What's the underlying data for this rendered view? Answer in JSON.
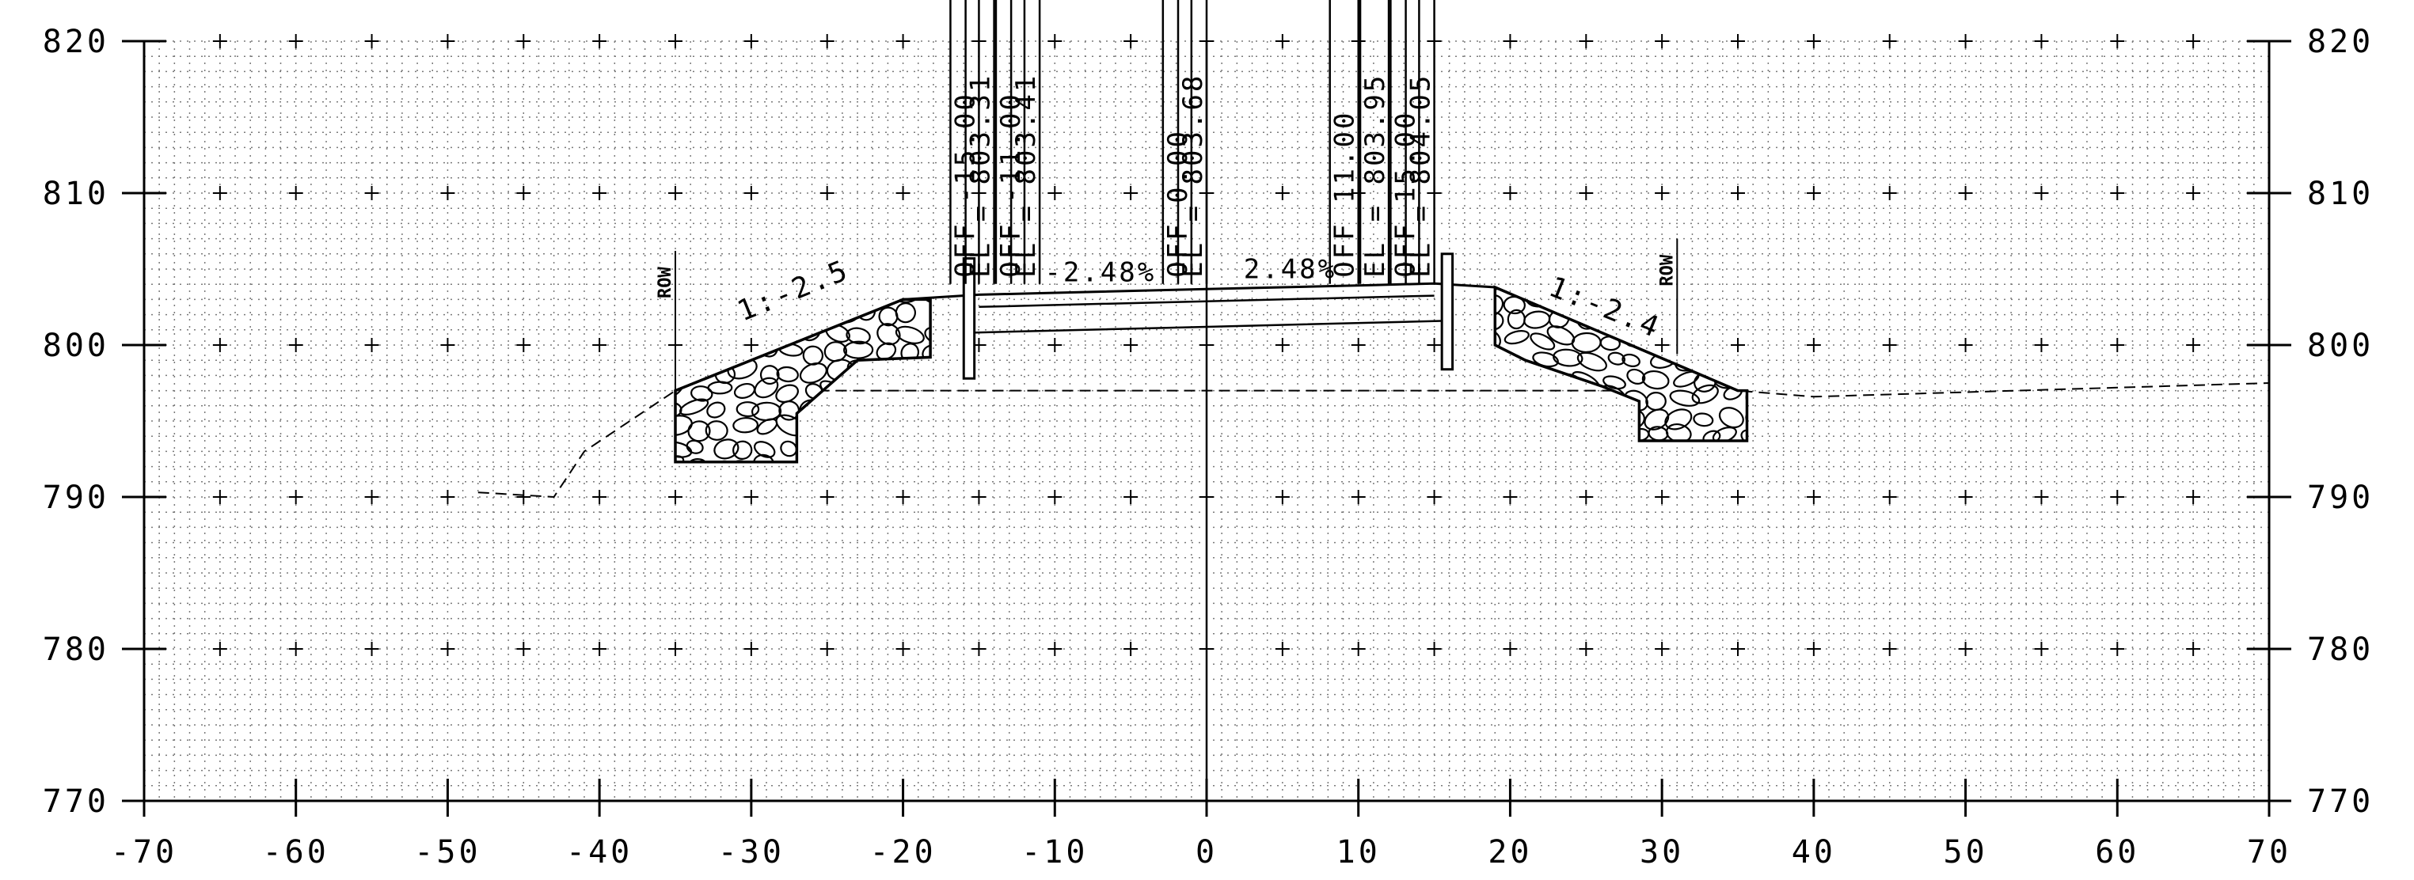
{
  "chart_data": {
    "type": "cross-section",
    "x_range": [
      -70,
      70
    ],
    "y_range": [
      770,
      820
    ],
    "x_ticks": [
      "-70",
      "-60",
      "-50",
      "-40",
      "-30",
      "-20",
      "-10",
      "0",
      "10",
      "20",
      "30",
      "40",
      "50",
      "60",
      "70"
    ],
    "y_ticks": [
      "770",
      "780",
      "790",
      "800",
      "810",
      "820"
    ],
    "grid": true,
    "finished_grade": [
      {
        "x": -35,
        "y": 797
      },
      {
        "x": -20,
        "y": 803
      },
      {
        "x": -15,
        "y": 803.31
      },
      {
        "x": -11,
        "y": 803.41
      },
      {
        "x": 0,
        "y": 803.68
      },
      {
        "x": 11,
        "y": 803.95
      },
      {
        "x": 15,
        "y": 804.05
      },
      {
        "x": 19,
        "y": 803.8
      },
      {
        "x": 35,
        "y": 797
      }
    ],
    "subgrade": [
      {
        "x": -16,
        "y": 800.8
      },
      {
        "x": 0,
        "y": 801.2
      },
      {
        "x": 16,
        "y": 801.6
      }
    ],
    "existing_ground": [
      {
        "x": -48,
        "y": 790.3
      },
      {
        "x": -43,
        "y": 790
      },
      {
        "x": -41,
        "y": 793
      },
      {
        "x": -35,
        "y": 797
      },
      {
        "x": 35,
        "y": 797
      },
      {
        "x": 40,
        "y": 796.6
      },
      {
        "x": 60,
        "y": 797.2
      },
      {
        "x": 70,
        "y": 797.5
      }
    ],
    "riprap_left": [
      {
        "x": -35,
        "y": 797
      },
      {
        "x": -20,
        "y": 803
      },
      {
        "x": -18.2,
        "y": 803
      },
      {
        "x": -18.2,
        "y": 799.2
      },
      {
        "x": -23,
        "y": 799
      },
      {
        "x": -27,
        "y": 795.5
      },
      {
        "x": -27,
        "y": 792.3
      },
      {
        "x": -35,
        "y": 792.3
      }
    ],
    "riprap_right": [
      {
        "x": 19,
        "y": 803.8
      },
      {
        "x": 35,
        "y": 797
      },
      {
        "x": 35.6,
        "y": 797
      },
      {
        "x": 35.6,
        "y": 793.7
      },
      {
        "x": 28.5,
        "y": 793.7
      },
      {
        "x": 28.5,
        "y": 796.3
      },
      {
        "x": 26,
        "y": 797.3
      },
      {
        "x": 21,
        "y": 799
      },
      {
        "x": 19,
        "y": 800
      }
    ],
    "walls": [
      {
        "x1": -16,
        "x2": -15.3,
        "y_top": 805.7,
        "y_bottom": 797.8
      },
      {
        "x1": 15.5,
        "x2": 16.2,
        "y_top": 806.0,
        "y_bottom": 798.4
      }
    ],
    "offset_labels": [
      {
        "x": -15,
        "text": "OFF -15.00"
      },
      {
        "x": -14,
        "text": "EL = 803.31"
      },
      {
        "x": -12,
        "text": "OFF -11.00"
      },
      {
        "x": -11,
        "text": "EL = 803.41"
      },
      {
        "x": -1,
        "text": "OFF 0.00"
      },
      {
        "x": 0,
        "text": "EL = 803.68"
      },
      {
        "x": 10,
        "text": "OFF 11.00"
      },
      {
        "x": 12,
        "text": "EL = 803.95"
      },
      {
        "x": 14,
        "text": "OFF 15.00"
      },
      {
        "x": 15,
        "text": "EL = 804.05"
      }
    ],
    "grade_labels": [
      {
        "x": -7,
        "y": 804.2,
        "text": "-2.48%"
      },
      {
        "x": 5.5,
        "y": 804.4,
        "text": "2.48%"
      }
    ],
    "slope_labels": [
      {
        "x": -27,
        "y": 803,
        "text": "1:-2.5",
        "angle": -22
      },
      {
        "x": 26,
        "y": 801.9,
        "text": "1:-2.4",
        "angle": 22
      }
    ],
    "row_markers": [
      {
        "x": -35,
        "y_top": 806.2,
        "y_bottom": 797,
        "label": "ROW"
      },
      {
        "x": 31,
        "y_top": 807.0,
        "y_bottom": 799.4,
        "label": "ROW"
      }
    ]
  }
}
